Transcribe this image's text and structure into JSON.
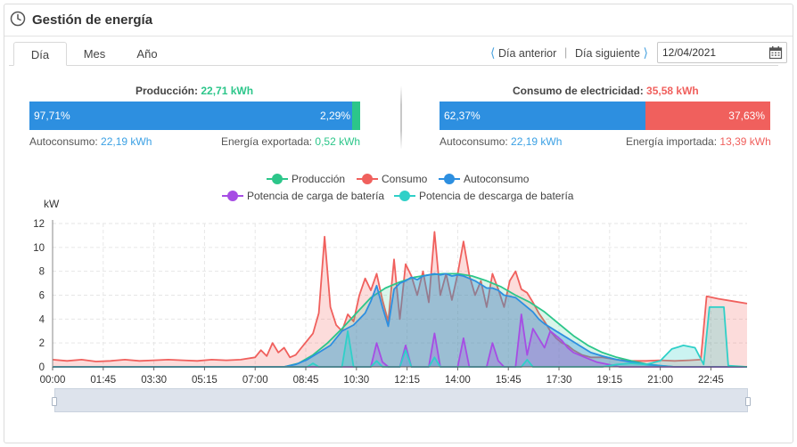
{
  "header": {
    "title": "Gestión de energía"
  },
  "tabs": [
    {
      "label": "Día",
      "active": true
    },
    {
      "label": "Mes",
      "active": false
    },
    {
      "label": "Año",
      "active": false
    }
  ],
  "nav": {
    "prev_label": "Día anterior",
    "next_label": "Día siguiente",
    "date": "12/04/2021"
  },
  "production": {
    "title": "Producción: ",
    "value": "22,71 kWh",
    "self_pct": "97,71%",
    "export_pct": "2,29%",
    "self_label": "Autoconsumo: ",
    "self_value": "22,19 kWh",
    "export_label": "Energía exportada: ",
    "export_value": "0,52 kWh"
  },
  "consumption": {
    "title": "Consumo de electricidad: ",
    "value": "35,58 kWh",
    "self_pct": "62,37%",
    "import_pct": "37,63%",
    "self_label": "Autoconsumo: ",
    "self_value": "22,19 kWh",
    "import_label": "Energía importada: ",
    "import_value": "13,39 kWh"
  },
  "colors": {
    "production": "#2cc68a",
    "consumption": "#f0605d",
    "self_consumption": "#2d8fe0",
    "battery_charge": "#a64de4",
    "battery_discharge": "#2fd0c8",
    "accent": "#3aa0e4"
  },
  "chart_data": {
    "type": "area",
    "ylabel": "kW",
    "ylim": [
      0,
      12
    ],
    "yticks": [
      "0",
      "2",
      "4",
      "6",
      "8",
      "10",
      "12"
    ],
    "xticks": [
      "00:00",
      "01:45",
      "03:30",
      "05:15",
      "07:00",
      "08:45",
      "10:30",
      "12:15",
      "14:00",
      "15:45",
      "17:30",
      "19:15",
      "21:00",
      "22:45"
    ],
    "xrange_hours": [
      0,
      24
    ],
    "grid": true,
    "legend_position": "top",
    "series": [
      {
        "name": "Producción",
        "color": "#2cc68a",
        "points": [
          [
            0,
            0
          ],
          [
            8.0,
            0
          ],
          [
            8.5,
            0.3
          ],
          [
            9.0,
            1.0
          ],
          [
            9.5,
            2.0
          ],
          [
            10.0,
            3.2
          ],
          [
            10.5,
            4.5
          ],
          [
            11.0,
            5.8
          ],
          [
            11.5,
            6.6
          ],
          [
            12.0,
            7.1
          ],
          [
            12.5,
            7.5
          ],
          [
            13.0,
            7.7
          ],
          [
            13.5,
            7.8
          ],
          [
            14.0,
            7.8
          ],
          [
            14.5,
            7.6
          ],
          [
            15.0,
            7.2
          ],
          [
            15.5,
            6.7
          ],
          [
            16.0,
            6.0
          ],
          [
            16.5,
            5.4
          ],
          [
            17.0,
            4.6
          ],
          [
            17.5,
            3.6
          ],
          [
            18.0,
            2.6
          ],
          [
            18.5,
            1.8
          ],
          [
            19.0,
            1.2
          ],
          [
            19.5,
            0.8
          ],
          [
            20.0,
            0.5
          ],
          [
            20.5,
            0.25
          ],
          [
            21.0,
            0.1
          ],
          [
            21.5,
            0
          ],
          [
            24,
            0
          ]
        ]
      },
      {
        "name": "Consumo",
        "color": "#f0605d",
        "points": [
          [
            0,
            0.6
          ],
          [
            0.5,
            0.5
          ],
          [
            1.0,
            0.6
          ],
          [
            1.5,
            0.45
          ],
          [
            2.0,
            0.5
          ],
          [
            2.5,
            0.6
          ],
          [
            3.0,
            0.5
          ],
          [
            3.5,
            0.55
          ],
          [
            4.0,
            0.6
          ],
          [
            4.5,
            0.55
          ],
          [
            5.0,
            0.5
          ],
          [
            5.5,
            0.6
          ],
          [
            6.0,
            0.55
          ],
          [
            6.5,
            0.6
          ],
          [
            7.0,
            0.8
          ],
          [
            7.2,
            1.4
          ],
          [
            7.4,
            0.9
          ],
          [
            7.6,
            2.0
          ],
          [
            7.8,
            1.2
          ],
          [
            8.0,
            1.6
          ],
          [
            8.2,
            0.8
          ],
          [
            8.4,
            1.0
          ],
          [
            8.6,
            1.6
          ],
          [
            8.8,
            2.2
          ],
          [
            9.0,
            2.8
          ],
          [
            9.2,
            4.5
          ],
          [
            9.4,
            10.9
          ],
          [
            9.6,
            5.0
          ],
          [
            9.8,
            3.5
          ],
          [
            10.0,
            3.0
          ],
          [
            10.2,
            4.4
          ],
          [
            10.4,
            3.8
          ],
          [
            10.6,
            6.0
          ],
          [
            10.8,
            7.4
          ],
          [
            11.0,
            6.4
          ],
          [
            11.2,
            7.8
          ],
          [
            11.4,
            5.6
          ],
          [
            11.6,
            3.8
          ],
          [
            11.8,
            9.0
          ],
          [
            12.0,
            4.0
          ],
          [
            12.2,
            8.6
          ],
          [
            12.4,
            7.6
          ],
          [
            12.6,
            6.0
          ],
          [
            12.8,
            8.0
          ],
          [
            13.0,
            5.4
          ],
          [
            13.2,
            11.3
          ],
          [
            13.4,
            6.0
          ],
          [
            13.6,
            7.8
          ],
          [
            13.8,
            5.6
          ],
          [
            14.0,
            7.8
          ],
          [
            14.2,
            10.5
          ],
          [
            14.4,
            7.7
          ],
          [
            14.6,
            6.0
          ],
          [
            14.8,
            7.2
          ],
          [
            15.0,
            5.0
          ],
          [
            15.2,
            7.8
          ],
          [
            15.4,
            6.5
          ],
          [
            15.6,
            5.0
          ],
          [
            15.8,
            7.2
          ],
          [
            16.0,
            8.0
          ],
          [
            16.2,
            6.5
          ],
          [
            16.4,
            6.2
          ],
          [
            16.6,
            5.4
          ],
          [
            16.8,
            4.5
          ],
          [
            17.0,
            3.8
          ],
          [
            17.2,
            3.0
          ],
          [
            17.4,
            2.4
          ],
          [
            17.6,
            2.0
          ],
          [
            17.8,
            1.8
          ],
          [
            18.0,
            1.4
          ],
          [
            18.3,
            1.0
          ],
          [
            18.6,
            0.8
          ],
          [
            19.0,
            0.8
          ],
          [
            19.5,
            0.6
          ],
          [
            20.0,
            0.5
          ],
          [
            20.5,
            0.5
          ],
          [
            21.0,
            0.55
          ],
          [
            21.5,
            0.5
          ],
          [
            22.0,
            0.55
          ],
          [
            22.4,
            0.6
          ],
          [
            22.6,
            5.9
          ],
          [
            23.0,
            5.7
          ],
          [
            23.5,
            5.5
          ],
          [
            24,
            5.3
          ]
        ]
      },
      {
        "name": "Autoconsumo",
        "color": "#2d8fe0",
        "points": [
          [
            0,
            0
          ],
          [
            8.0,
            0
          ],
          [
            8.4,
            0.2
          ],
          [
            8.8,
            0.6
          ],
          [
            9.2,
            1.2
          ],
          [
            9.6,
            1.8
          ],
          [
            10.0,
            3.0
          ],
          [
            10.4,
            3.5
          ],
          [
            10.8,
            4.5
          ],
          [
            11.0,
            5.5
          ],
          [
            11.2,
            6.8
          ],
          [
            11.4,
            5.0
          ],
          [
            11.6,
            3.4
          ],
          [
            11.8,
            6.5
          ],
          [
            12.0,
            7.0
          ],
          [
            12.2,
            7.2
          ],
          [
            12.4,
            7.5
          ],
          [
            12.6,
            7.3
          ],
          [
            12.8,
            7.6
          ],
          [
            13.0,
            7.7
          ],
          [
            13.2,
            7.8
          ],
          [
            13.4,
            7.7
          ],
          [
            13.6,
            7.8
          ],
          [
            13.8,
            7.6
          ],
          [
            14.0,
            7.7
          ],
          [
            14.2,
            7.6
          ],
          [
            14.4,
            7.4
          ],
          [
            14.6,
            7.2
          ],
          [
            14.8,
            6.9
          ],
          [
            15.0,
            6.6
          ],
          [
            15.2,
            6.6
          ],
          [
            15.4,
            6.4
          ],
          [
            15.6,
            6.0
          ],
          [
            15.8,
            5.9
          ],
          [
            16.0,
            5.8
          ],
          [
            16.2,
            5.4
          ],
          [
            16.4,
            5.0
          ],
          [
            16.6,
            4.6
          ],
          [
            16.8,
            4.0
          ],
          [
            17.0,
            3.6
          ],
          [
            17.4,
            3.0
          ],
          [
            17.8,
            2.4
          ],
          [
            18.2,
            1.8
          ],
          [
            18.6,
            1.2
          ],
          [
            19.0,
            0.9
          ],
          [
            19.5,
            0.6
          ],
          [
            20.0,
            0.4
          ],
          [
            20.5,
            0.2
          ],
          [
            21.0,
            0.1
          ],
          [
            21.5,
            0
          ],
          [
            24,
            0
          ]
        ]
      },
      {
        "name": "Potencia de carga de batería",
        "color": "#a64de4",
        "points": [
          [
            0,
            0
          ],
          [
            11.0,
            0
          ],
          [
            11.2,
            2.0
          ],
          [
            11.4,
            0.4
          ],
          [
            11.6,
            0
          ],
          [
            12.0,
            0
          ],
          [
            12.2,
            1.8
          ],
          [
            12.4,
            0
          ],
          [
            13.0,
            0
          ],
          [
            13.2,
            2.8
          ],
          [
            13.4,
            0
          ],
          [
            14.0,
            0
          ],
          [
            14.2,
            2.4
          ],
          [
            14.4,
            0
          ],
          [
            15.0,
            0
          ],
          [
            15.2,
            2.0
          ],
          [
            15.4,
            0.5
          ],
          [
            15.6,
            0
          ],
          [
            16.0,
            0
          ],
          [
            16.2,
            4.4
          ],
          [
            16.4,
            1.0
          ],
          [
            16.6,
            3.2
          ],
          [
            16.8,
            2.4
          ],
          [
            17.0,
            1.6
          ],
          [
            17.2,
            3.0
          ],
          [
            17.4,
            2.6
          ],
          [
            17.6,
            2.2
          ],
          [
            17.8,
            1.6
          ],
          [
            18.0,
            1.2
          ],
          [
            18.4,
            0.8
          ],
          [
            18.8,
            0.4
          ],
          [
            19.2,
            0.2
          ],
          [
            19.6,
            0
          ],
          [
            24,
            0
          ]
        ]
      },
      {
        "name": "Potencia de descarga de batería",
        "color": "#2fd0c8",
        "points": [
          [
            0,
            0
          ],
          [
            8.8,
            0
          ],
          [
            9.0,
            0.3
          ],
          [
            9.2,
            0
          ],
          [
            10.0,
            0
          ],
          [
            10.2,
            3.0
          ],
          [
            10.4,
            0
          ],
          [
            11.0,
            0
          ],
          [
            11.2,
            0.5
          ],
          [
            11.4,
            0
          ],
          [
            12.0,
            0
          ],
          [
            12.2,
            1.4
          ],
          [
            12.4,
            0
          ],
          [
            13.0,
            0
          ],
          [
            13.2,
            0.8
          ],
          [
            13.4,
            0
          ],
          [
            16.2,
            0
          ],
          [
            16.4,
            0.6
          ],
          [
            16.6,
            0
          ],
          [
            19.0,
            0
          ],
          [
            19.5,
            0.2
          ],
          [
            20.0,
            0.3
          ],
          [
            20.5,
            0.2
          ],
          [
            21.0,
            0.5
          ],
          [
            21.4,
            1.5
          ],
          [
            21.8,
            1.8
          ],
          [
            22.2,
            1.6
          ],
          [
            22.5,
            0.2
          ],
          [
            22.7,
            5.0
          ],
          [
            23.2,
            5.0
          ],
          [
            23.35,
            0.1
          ],
          [
            24,
            0
          ]
        ]
      }
    ]
  }
}
